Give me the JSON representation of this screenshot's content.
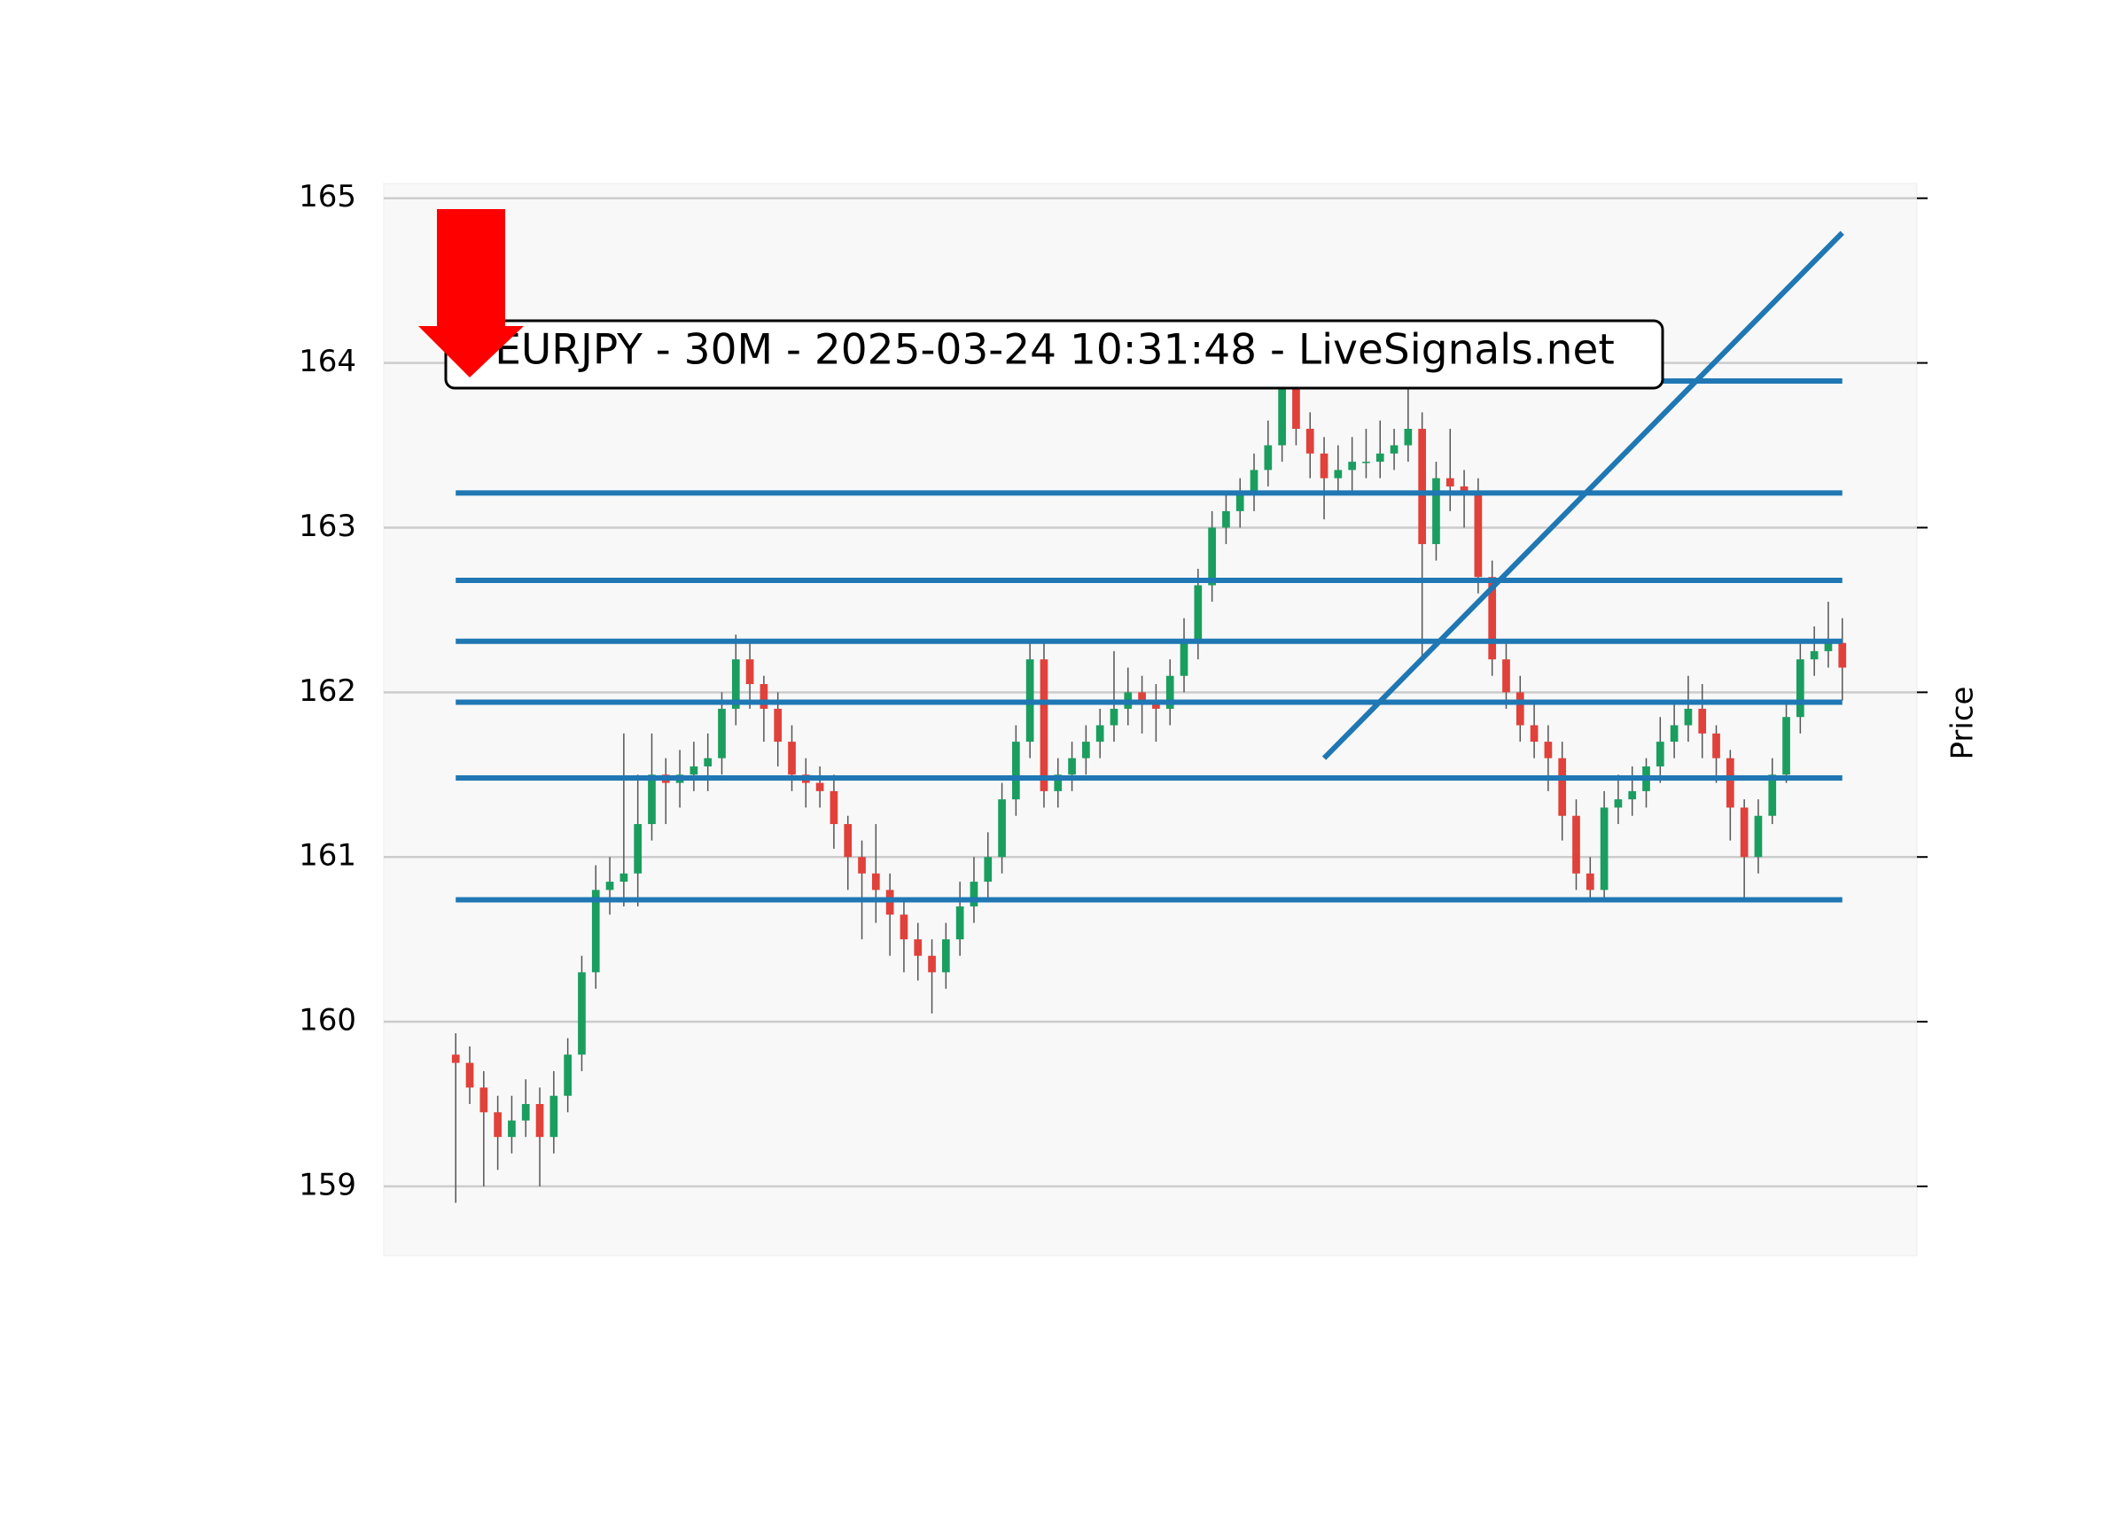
{
  "chart_data": {
    "type": "candlestick",
    "title": "EURJPY - 30M - 2025-03-24 10:31:48 - LiveSignals.net",
    "y_label": "Price",
    "ylim": [
      158.58,
      165.09
    ],
    "yticks": [
      159,
      160,
      161,
      162,
      163,
      164,
      165
    ],
    "xlim": [
      -5.14,
      104.33
    ],
    "grid": true,
    "up_color": "#1a9e5f",
    "down_color": "#e0413a",
    "wick_color": "#555555",
    "line_color": "#1f77b4",
    "open": [
      159.8,
      159.75,
      159.6,
      159.45,
      159.3,
      159.4,
      159.5,
      159.3,
      159.55,
      159.8,
      160.3,
      160.8,
      160.85,
      160.9,
      161.2,
      161.5,
      161.45,
      161.5,
      161.55,
      161.6,
      161.9,
      162.2,
      162.05,
      161.9,
      161.7,
      161.5,
      161.45,
      161.4,
      161.2,
      161.0,
      160.9,
      160.8,
      160.65,
      160.5,
      160.4,
      160.3,
      160.5,
      160.7,
      160.85,
      161.0,
      161.35,
      161.7,
      162.2,
      161.4,
      161.5,
      161.6,
      161.7,
      161.8,
      161.9,
      162.0,
      161.95,
      161.9,
      162.1,
      162.3,
      162.65,
      163.0,
      163.1,
      163.2,
      163.35,
      163.5,
      163.9,
      163.6,
      163.45,
      163.3,
      163.35,
      163.4,
      163.4,
      163.45,
      163.5,
      163.6,
      162.9,
      163.3,
      163.25,
      163.2,
      162.7,
      162.2,
      162.0,
      161.8,
      161.7,
      161.6,
      161.25,
      160.9,
      160.8,
      161.3,
      161.35,
      161.4,
      161.55,
      161.7,
      161.8,
      161.9,
      161.75,
      161.6,
      161.3,
      161.0,
      161.25,
      161.5,
      161.85,
      162.2,
      162.25,
      162.3
    ],
    "high": [
      159.93,
      159.85,
      159.7,
      159.55,
      159.55,
      159.65,
      159.6,
      159.7,
      159.9,
      160.4,
      160.95,
      161.0,
      161.75,
      161.5,
      161.75,
      161.6,
      161.65,
      161.7,
      161.75,
      162.0,
      162.35,
      162.3,
      162.1,
      162.0,
      161.8,
      161.6,
      161.55,
      161.5,
      161.25,
      161.1,
      161.2,
      160.9,
      160.75,
      160.6,
      160.5,
      160.6,
      160.85,
      161.0,
      161.15,
      161.45,
      161.8,
      162.3,
      162.3,
      161.6,
      161.7,
      161.8,
      161.9,
      162.25,
      162.15,
      162.1,
      162.05,
      162.2,
      162.45,
      162.75,
      163.1,
      163.2,
      163.3,
      163.45,
      163.65,
      164.0,
      163.95,
      163.7,
      163.55,
      163.5,
      163.55,
      163.6,
      163.65,
      163.6,
      163.9,
      163.7,
      163.4,
      163.6,
      163.35,
      163.3,
      162.8,
      162.3,
      162.1,
      161.95,
      161.8,
      161.7,
      161.35,
      161.0,
      161.4,
      161.5,
      161.55,
      161.6,
      161.85,
      161.95,
      162.1,
      162.05,
      161.8,
      161.65,
      161.35,
      161.35,
      161.6,
      161.95,
      162.3,
      162.4,
      162.55,
      162.45
    ],
    "low": [
      158.9,
      159.5,
      159.0,
      159.1,
      159.2,
      159.3,
      159.0,
      159.2,
      159.45,
      159.7,
      160.2,
      160.65,
      160.7,
      160.7,
      161.1,
      161.2,
      161.3,
      161.4,
      161.4,
      161.5,
      161.8,
      161.9,
      161.7,
      161.55,
      161.4,
      161.3,
      161.3,
      161.05,
      160.8,
      160.5,
      160.6,
      160.4,
      160.3,
      160.25,
      160.05,
      160.2,
      160.4,
      160.6,
      160.75,
      160.9,
      161.25,
      161.6,
      161.3,
      161.3,
      161.4,
      161.5,
      161.6,
      161.7,
      161.8,
      161.75,
      161.7,
      161.8,
      162.0,
      162.2,
      162.55,
      162.9,
      163.0,
      163.1,
      163.25,
      163.4,
      163.5,
      163.3,
      163.05,
      163.2,
      163.2,
      163.3,
      163.3,
      163.35,
      163.4,
      162.2,
      162.8,
      163.1,
      163.0,
      162.6,
      162.1,
      161.9,
      161.7,
      161.6,
      161.4,
      161.1,
      160.8,
      160.75,
      160.75,
      161.2,
      161.25,
      161.3,
      161.45,
      161.6,
      161.7,
      161.6,
      161.45,
      161.1,
      160.75,
      160.9,
      161.2,
      161.45,
      161.75,
      162.1,
      162.15,
      161.95
    ],
    "close": [
      159.75,
      159.6,
      159.45,
      159.3,
      159.4,
      159.5,
      159.3,
      159.55,
      159.8,
      160.3,
      160.8,
      160.85,
      160.9,
      161.2,
      161.5,
      161.45,
      161.5,
      161.55,
      161.6,
      161.9,
      162.2,
      162.05,
      161.9,
      161.7,
      161.5,
      161.45,
      161.4,
      161.2,
      161.0,
      160.9,
      160.8,
      160.65,
      160.5,
      160.4,
      160.3,
      160.5,
      160.7,
      160.85,
      161.0,
      161.35,
      161.7,
      162.2,
      161.4,
      161.5,
      161.6,
      161.7,
      161.8,
      161.9,
      162.0,
      161.95,
      161.9,
      162.1,
      162.3,
      162.65,
      163.0,
      163.1,
      163.2,
      163.35,
      163.5,
      163.9,
      163.6,
      163.45,
      163.3,
      163.35,
      163.4,
      163.4,
      163.45,
      163.5,
      163.6,
      162.9,
      163.3,
      163.25,
      163.2,
      162.7,
      162.2,
      162.0,
      161.8,
      161.7,
      161.6,
      161.25,
      160.9,
      160.8,
      161.3,
      161.35,
      161.4,
      161.55,
      161.7,
      161.8,
      161.9,
      161.75,
      161.6,
      161.3,
      161.0,
      161.25,
      161.5,
      161.85,
      162.2,
      162.25,
      162.3,
      162.15
    ],
    "lines": [
      {
        "x": [
          0,
          99
        ],
        "y": [
          163.21,
          163.21
        ]
      },
      {
        "x": [
          0,
          99
        ],
        "y": [
          162.68,
          162.68
        ]
      },
      {
        "x": [
          0,
          99
        ],
        "y": [
          162.31,
          162.31
        ]
      },
      {
        "x": [
          0,
          99
        ],
        "y": [
          161.94,
          161.94
        ]
      },
      {
        "x": [
          0,
          99
        ],
        "y": [
          161.48,
          161.48
        ]
      },
      {
        "x": [
          0,
          99
        ],
        "y": [
          160.74,
          160.74
        ]
      },
      {
        "x": [
          83,
          99
        ],
        "y": [
          163.89,
          163.89
        ]
      },
      {
        "x": [
          62,
          99
        ],
        "y": [
          161.6,
          164.79
        ]
      }
    ]
  }
}
